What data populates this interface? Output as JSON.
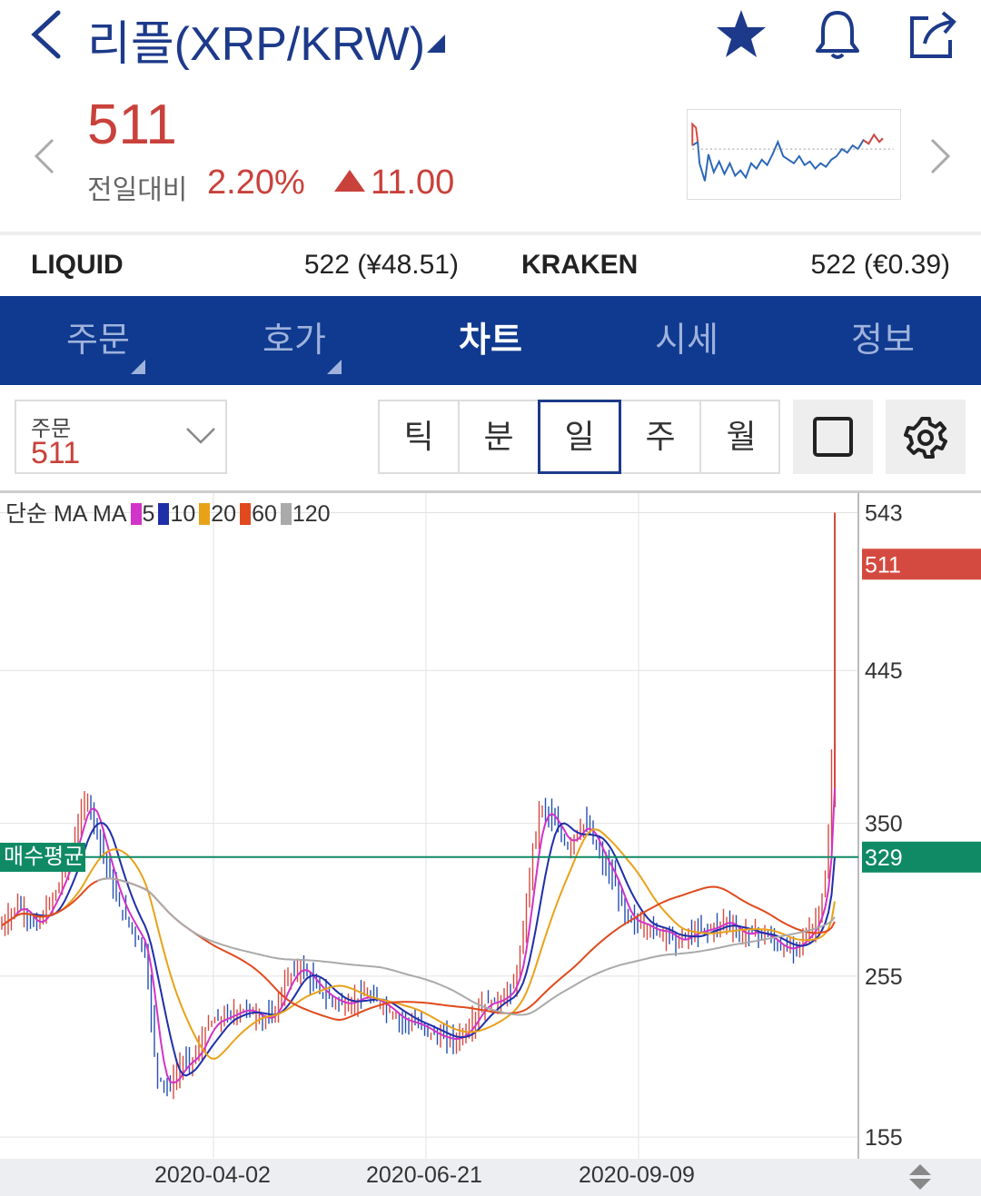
{
  "header": {
    "title": "리플(XRP/KRW)",
    "icons": [
      "back-icon",
      "dropdown-triangle-icon",
      "star-icon",
      "bell-icon",
      "share-icon"
    ]
  },
  "price": {
    "current": "511",
    "change_label": "전일대비",
    "change_pct": "2.20%",
    "change_amt": "11.00",
    "color": "#c9413b"
  },
  "exchanges": [
    {
      "name": "LIQUID",
      "value": "522 (¥48.51)"
    },
    {
      "name": "KRAKEN",
      "value": "522 (€0.39)"
    }
  ],
  "tabs": [
    {
      "label": "주문",
      "has_menu": true
    },
    {
      "label": "호가",
      "has_menu": true
    },
    {
      "label": "차트",
      "active": true
    },
    {
      "label": "시세"
    },
    {
      "label": "정보"
    }
  ],
  "toolbar": {
    "order_label": "주문",
    "order_value": "511",
    "periods": [
      "틱",
      "분",
      "일",
      "주",
      "월"
    ],
    "active_period": "일"
  },
  "chart_data": {
    "type": "candlestick",
    "indicator_label": "단순 MA",
    "ma_series": [
      {
        "name": "5",
        "color": "#d233c9"
      },
      {
        "name": "10",
        "color": "#1f2fa8"
      },
      {
        "name": "20",
        "color": "#e8a21a"
      },
      {
        "name": "60",
        "color": "#e04a1e"
      },
      {
        "name": "120",
        "color": "#aaaaaa"
      }
    ],
    "y_ticks": [
      "543",
      "445",
      "350",
      "255",
      "155"
    ],
    "ylim": [
      150,
      545
    ],
    "x_ticks": [
      "2020-04-02",
      "2020-06-21",
      "2020-09-09"
    ],
    "current_price_label": "511",
    "avg_price_label": "매수평균",
    "avg_price_value": "329",
    "colors": {
      "up": "#d54a40",
      "down": "#2450b0",
      "avg": "#0f8a64"
    }
  }
}
